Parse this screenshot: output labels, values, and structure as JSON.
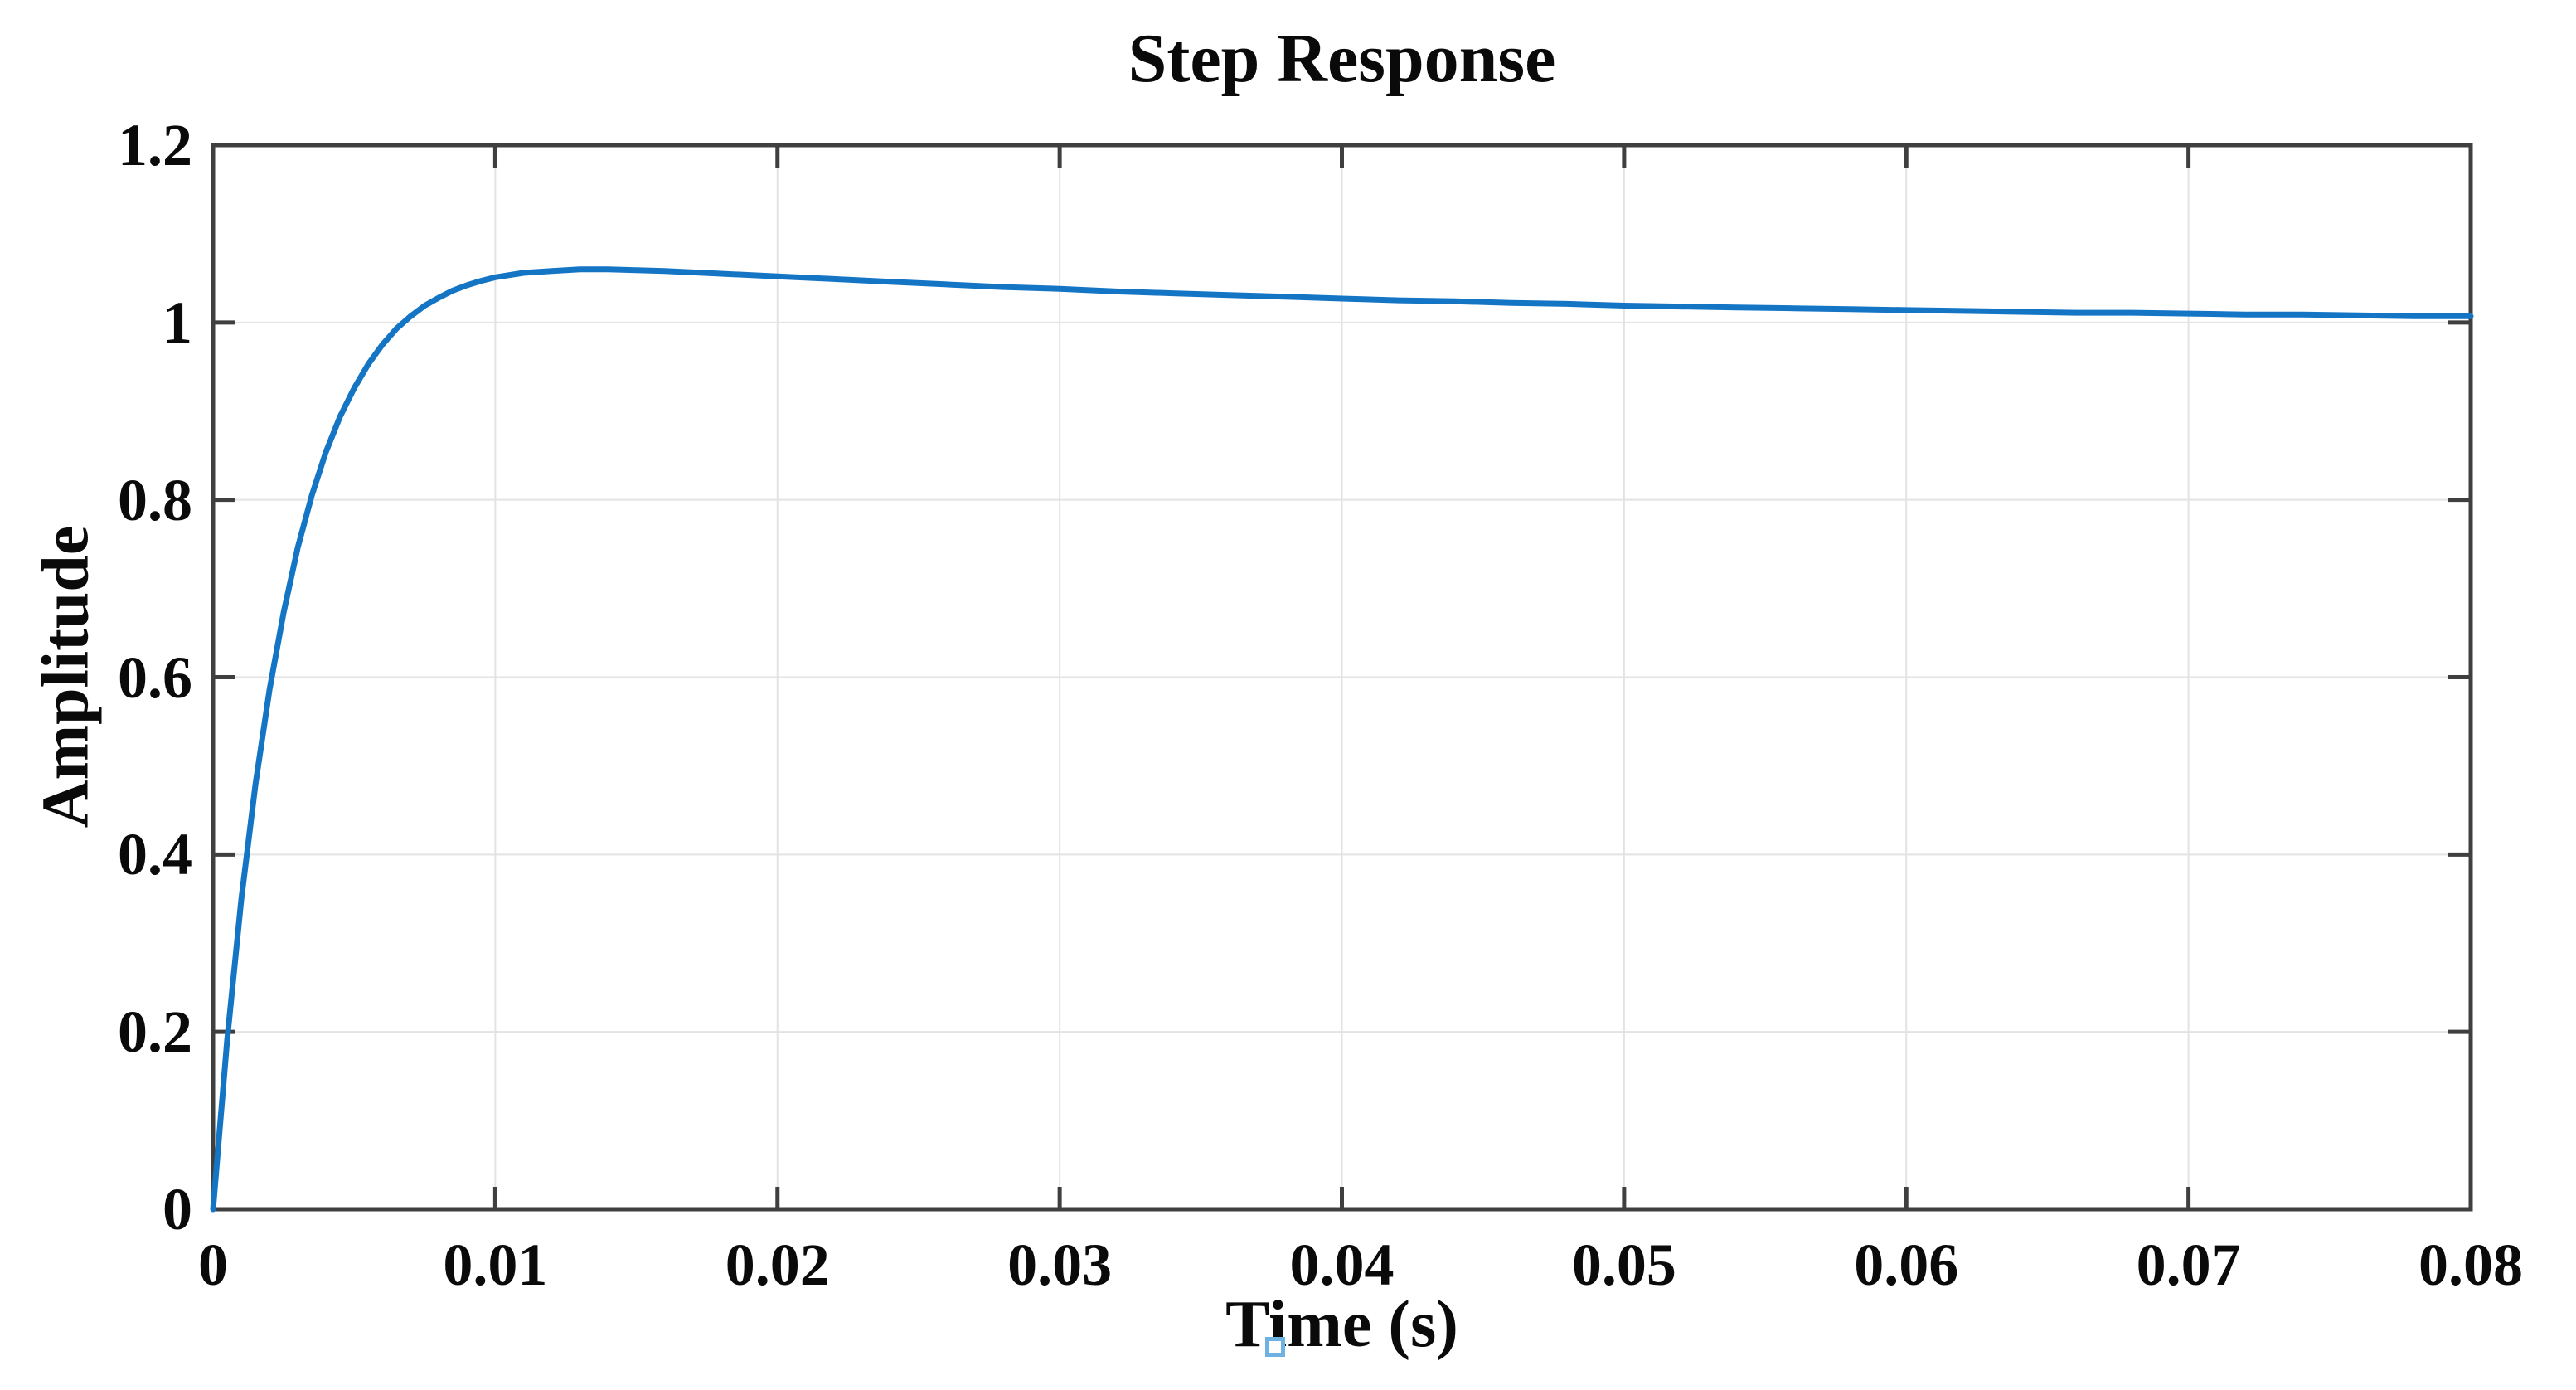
{
  "figure": {
    "title": "Step Response",
    "xlabel": "Time (s)",
    "ylabel": "Amplitude"
  },
  "chart_data": {
    "type": "line",
    "title": "Step Response",
    "xlabel": "Time (s)",
    "ylabel": "Amplitude",
    "xlim": [
      0,
      0.08
    ],
    "ylim": [
      0,
      1.2
    ],
    "x_ticks": [
      0,
      0.01,
      0.02,
      0.03,
      0.04,
      0.05,
      0.06,
      0.07,
      0.08
    ],
    "x_tick_labels": [
      "0",
      "0.01",
      "0.02",
      "0.03",
      "0.04",
      "0.05",
      "0.06",
      "0.07",
      "0.08"
    ],
    "y_ticks": [
      0,
      0.2,
      0.4,
      0.6,
      0.8,
      1,
      1.2
    ],
    "y_tick_labels": [
      "0",
      "0.2",
      "0.4",
      "0.6",
      "0.8",
      "1",
      "1.2"
    ],
    "grid": true,
    "legend": "none",
    "colors": {
      "line": "#1575c5",
      "axis": "#3f3f3f",
      "grid": "#e3e3e3",
      "text": "#0a0a0a",
      "background": "#ffffff",
      "cursor_artifact": "#6fb2e2"
    },
    "series": [
      {
        "name": "step response",
        "x": [
          0,
          0.0005,
          0.001,
          0.0015,
          0.002,
          0.0025,
          0.003,
          0.0035,
          0.004,
          0.0045,
          0.005,
          0.0055,
          0.006,
          0.0065,
          0.007,
          0.0075,
          0.008,
          0.0085,
          0.009,
          0.0095,
          0.01,
          0.011,
          0.012,
          0.013,
          0.014,
          0.015,
          0.016,
          0.018,
          0.02,
          0.022,
          0.024,
          0.026,
          0.028,
          0.03,
          0.032,
          0.034,
          0.036,
          0.038,
          0.04,
          0.042,
          0.044,
          0.046,
          0.048,
          0.05,
          0.052,
          0.054,
          0.056,
          0.058,
          0.06,
          0.062,
          0.064,
          0.066,
          0.068,
          0.07,
          0.072,
          0.074,
          0.076,
          0.078,
          0.08
        ],
        "y": [
          0,
          0.191,
          0.349,
          0.479,
          0.586,
          0.673,
          0.746,
          0.805,
          0.854,
          0.894,
          0.926,
          0.953,
          0.975,
          0.993,
          1.007,
          1.019,
          1.028,
          1.036,
          1.042,
          1.047,
          1.051,
          1.056,
          1.058,
          1.06,
          1.06,
          1.059,
          1.058,
          1.055,
          1.052,
          1.049,
          1.046,
          1.043,
          1.04,
          1.038,
          1.035,
          1.033,
          1.031,
          1.029,
          1.027,
          1.025,
          1.024,
          1.022,
          1.021,
          1.019,
          1.018,
          1.017,
          1.016,
          1.015,
          1.014,
          1.013,
          1.012,
          1.011,
          1.011,
          1.01,
          1.009,
          1.009,
          1.008,
          1.007,
          1.007
        ]
      }
    ],
    "observations": {
      "peak_value": 1.06,
      "peak_time_s": 0.014,
      "final_value": 1.007
    }
  }
}
